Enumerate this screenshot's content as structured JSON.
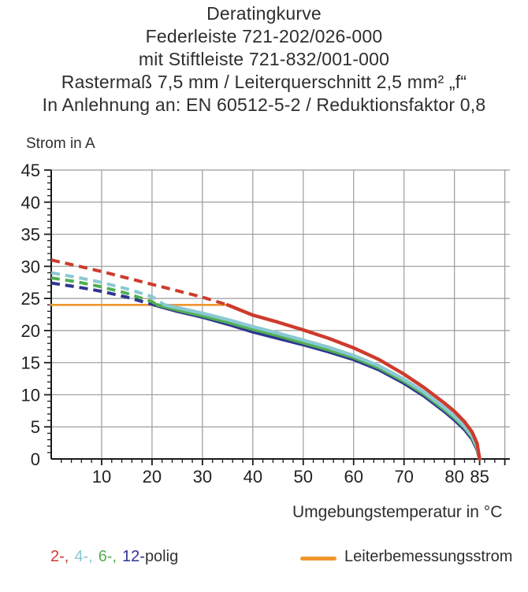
{
  "page": {
    "title_lines": [
      "Deratingkurve",
      "Federleiste 721-202/026-000",
      "mit Stiftleiste 721-832/001-000",
      "Rastermaß 7,5 mm / Leiterquerschnitt 2,5 mm² „f“",
      "In Anlehnung an: EN 60512-5-2 / Reduktionsfaktor 0,8"
    ]
  },
  "chart_data": {
    "type": "line",
    "title": "Deratingkurve",
    "xlabel": "Umgebungstemperatur in °C",
    "ylabel": "Strom in A",
    "xlim": [
      0,
      91
    ],
    "ylim": [
      0,
      45
    ],
    "grid": true,
    "x_tick_labels": [
      10,
      20,
      30,
      40,
      50,
      60,
      70,
      80,
      85
    ],
    "y_tick_labels": [
      0,
      5,
      10,
      15,
      20,
      25,
      30,
      35,
      40,
      45
    ],
    "x_grid_step": 10,
    "y_grid_step": 5,
    "x_minor_tick_step": 2,
    "y_minor_tick_step": 1,
    "axis_color": "#1a1a1a",
    "grid_color": "#9c9c9c",
    "rated_current_line": {
      "label": "Leiterbemessungsstrom",
      "color": "#f0962e",
      "value": 24,
      "x_range": [
        0,
        35
      ]
    },
    "series": [
      {
        "name": "2-polig",
        "color": "#ce3b2c",
        "style": "dashed-above-rated-then-solid",
        "dashed": [
          [
            0,
            31
          ],
          [
            5,
            30.1
          ],
          [
            10,
            29.2
          ],
          [
            15,
            28.2
          ],
          [
            20,
            27.2
          ],
          [
            25,
            26.2
          ],
          [
            30,
            25.2
          ],
          [
            35,
            24
          ]
        ],
        "solid": [
          [
            35,
            24
          ],
          [
            40,
            22.4
          ],
          [
            45,
            21.3
          ],
          [
            50,
            20.1
          ],
          [
            55,
            18.8
          ],
          [
            60,
            17.3
          ],
          [
            65,
            15.5
          ],
          [
            70,
            13.2
          ],
          [
            74,
            11.1
          ],
          [
            78,
            8.7
          ],
          [
            80,
            7.4
          ],
          [
            82,
            5.8
          ],
          [
            83.5,
            4.2
          ],
          [
            84.5,
            2.4
          ],
          [
            85,
            0
          ]
        ]
      },
      {
        "name": "4-polig",
        "color": "#8bc8d2",
        "style": "dashed-above-rated-then-solid",
        "dashed": [
          [
            0,
            29
          ],
          [
            5,
            28.3
          ],
          [
            10,
            27.5
          ],
          [
            15,
            26.5
          ],
          [
            20,
            25.3
          ],
          [
            22.5,
            24
          ]
        ],
        "solid": [
          [
            22.5,
            24
          ],
          [
            26,
            23.4
          ],
          [
            30,
            22.7
          ],
          [
            35,
            21.7
          ],
          [
            40,
            20.6
          ],
          [
            45,
            19.6
          ],
          [
            50,
            18.5
          ],
          [
            55,
            17.4
          ],
          [
            60,
            16.1
          ],
          [
            65,
            14.5
          ],
          [
            70,
            12.4
          ],
          [
            74,
            10.4
          ],
          [
            78,
            8
          ],
          [
            80,
            6.7
          ],
          [
            82,
            5.1
          ],
          [
            83.5,
            3.6
          ],
          [
            84.5,
            1.9
          ],
          [
            85,
            0
          ]
        ]
      },
      {
        "name": "6-polig",
        "color": "#4faf52",
        "style": "dashed-above-rated-then-solid",
        "dashed": [
          [
            0,
            28.2
          ],
          [
            5,
            27.6
          ],
          [
            10,
            26.8
          ],
          [
            15,
            25.8
          ],
          [
            20,
            24.5
          ],
          [
            21,
            24
          ]
        ],
        "solid": [
          [
            21,
            24
          ],
          [
            25,
            23.2
          ],
          [
            30,
            22.3
          ],
          [
            35,
            21.3
          ],
          [
            40,
            20.2
          ],
          [
            45,
            19.2
          ],
          [
            50,
            18.1
          ],
          [
            55,
            17
          ],
          [
            60,
            15.8
          ],
          [
            65,
            14.2
          ],
          [
            70,
            12.1
          ],
          [
            74,
            10.1
          ],
          [
            78,
            7.7
          ],
          [
            80,
            6.4
          ],
          [
            82,
            4.9
          ],
          [
            83.5,
            3.4
          ],
          [
            84.5,
            1.7
          ],
          [
            85,
            0
          ]
        ]
      },
      {
        "name": "12-polig",
        "color": "#2f3590",
        "style": "dashed-above-rated-then-solid",
        "dashed": [
          [
            0,
            27.4
          ],
          [
            5,
            26.8
          ],
          [
            10,
            26.1
          ],
          [
            15,
            25.2
          ],
          [
            20,
            24.1
          ],
          [
            20.4,
            24
          ]
        ],
        "solid": [
          [
            20.4,
            24
          ],
          [
            25,
            23
          ],
          [
            30,
            22.1
          ],
          [
            35,
            21
          ],
          [
            40,
            19.8
          ],
          [
            45,
            18.8
          ],
          [
            50,
            17.8
          ],
          [
            55,
            16.7
          ],
          [
            60,
            15.5
          ],
          [
            65,
            13.9
          ],
          [
            70,
            11.8
          ],
          [
            74,
            9.8
          ],
          [
            78,
            7.4
          ],
          [
            80,
            6.1
          ],
          [
            82,
            4.6
          ],
          [
            83.5,
            3.1
          ],
          [
            84.5,
            1.5
          ],
          [
            85,
            0
          ]
        ]
      }
    ],
    "legend_position": "bottom"
  },
  "legend": {
    "poles": [
      {
        "text": "2-,",
        "color": "#ce3b2c"
      },
      {
        "text": "4-,",
        "color": "#8bc8d2"
      },
      {
        "text": "6-,",
        "color": "#4faf52"
      },
      {
        "text": "12-",
        "color": "#2f3590"
      },
      {
        "text": "polig",
        "color": "#333333"
      }
    ],
    "rated_label": "Leiterbemessungsstrom",
    "rated_color": "#f0962e"
  }
}
